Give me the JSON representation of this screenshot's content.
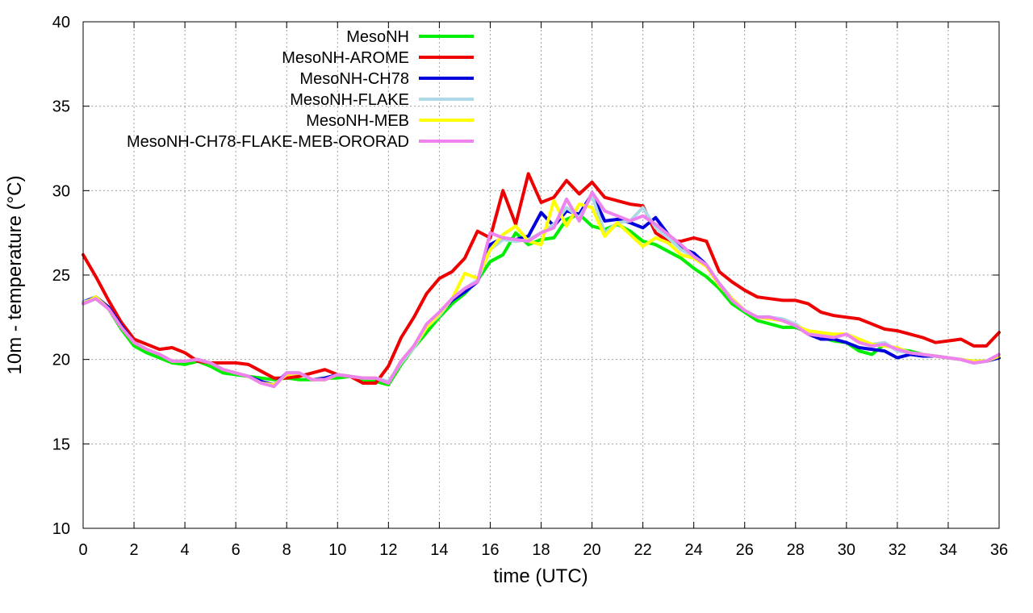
{
  "chart_data": {
    "type": "line",
    "xlabel": "time (UTC)",
    "ylabel": "10m - temperature (°C)",
    "xlim": [
      0,
      36
    ],
    "ylim": [
      10,
      40
    ],
    "xticks": [
      0,
      2,
      4,
      6,
      8,
      10,
      12,
      14,
      16,
      18,
      20,
      22,
      24,
      26,
      28,
      30,
      32,
      34,
      36
    ],
    "yticks": [
      10,
      15,
      20,
      25,
      30,
      35,
      40
    ],
    "grid": true,
    "legend_position": "top-left",
    "series": [
      {
        "name": "MesoNH",
        "color": "#00ee00",
        "x": [
          0,
          0.5,
          1,
          1.5,
          2,
          2.5,
          3,
          3.5,
          4,
          4.5,
          5,
          5.5,
          6,
          6.5,
          7,
          7.5,
          8,
          8.5,
          9,
          9.5,
          10,
          10.5,
          11,
          11.5,
          12,
          12.5,
          13,
          13.5,
          14,
          14.5,
          15,
          15.5,
          16,
          16.5,
          17,
          17.5,
          18,
          18.5,
          19,
          19.5,
          20,
          20.5,
          21,
          21.5,
          22,
          22.5,
          23,
          23.5,
          24,
          24.5,
          25,
          25.5,
          26,
          26.5,
          27,
          27.5,
          28,
          28.5,
          29,
          29.5,
          30,
          30.5,
          31,
          31.5,
          32,
          32.5,
          33,
          33.5,
          34,
          34.5,
          35,
          35.5,
          36
        ],
        "y": [
          23.3,
          23.6,
          23.0,
          21.8,
          20.8,
          20.4,
          20.1,
          19.8,
          19.7,
          19.9,
          19.6,
          19.2,
          19.1,
          19.0,
          18.9,
          18.8,
          18.9,
          18.8,
          18.8,
          18.9,
          18.9,
          19.0,
          18.8,
          18.7,
          18.5,
          19.7,
          20.7,
          21.6,
          22.5,
          23.3,
          23.9,
          24.7,
          25.8,
          26.2,
          27.5,
          26.8,
          27.1,
          27.2,
          28.3,
          28.6,
          27.9,
          27.7,
          28.0,
          27.6,
          27.0,
          26.8,
          26.4,
          26.0,
          25.4,
          24.9,
          24.2,
          23.3,
          22.8,
          22.3,
          22.1,
          21.9,
          21.9,
          21.6,
          21.3,
          21.1,
          21.0,
          20.5,
          20.3,
          20.9,
          20.6,
          20.5,
          20.3,
          20.2,
          20.1,
          20.0,
          19.9,
          19.9,
          20.2
        ]
      },
      {
        "name": "MesoNH-AROME",
        "color": "#ee0000",
        "x": [
          0,
          0.5,
          1,
          1.5,
          2,
          2.5,
          3,
          3.5,
          4,
          4.5,
          5,
          5.5,
          6,
          6.5,
          7,
          7.5,
          8,
          8.5,
          9,
          9.5,
          10,
          10.5,
          11,
          11.5,
          12,
          12.5,
          13,
          13.5,
          14,
          14.5,
          15,
          15.5,
          16,
          16.5,
          17,
          17.5,
          18,
          18.5,
          19,
          19.5,
          20,
          20.5,
          21,
          21.5,
          22,
          22.5,
          23,
          23.5,
          24,
          24.5,
          25,
          25.5,
          26,
          26.5,
          27,
          27.5,
          28,
          28.5,
          29,
          29.5,
          30,
          30.5,
          31,
          31.5,
          32,
          32.5,
          33,
          33.5,
          34,
          34.5,
          35,
          35.5,
          36
        ],
        "y": [
          26.2,
          24.9,
          23.5,
          22.2,
          21.2,
          20.9,
          20.6,
          20.7,
          20.4,
          19.9,
          19.8,
          19.8,
          19.8,
          19.7,
          19.3,
          18.9,
          18.9,
          19.0,
          19.2,
          19.4,
          19.1,
          19.0,
          18.6,
          18.6,
          19.6,
          21.3,
          22.5,
          23.9,
          24.8,
          25.2,
          26.0,
          27.6,
          27.2,
          30.0,
          28.0,
          31.0,
          29.3,
          29.6,
          30.6,
          29.8,
          30.5,
          29.6,
          29.4,
          29.2,
          29.1,
          27.5,
          27.0,
          27.0,
          27.2,
          27.0,
          25.2,
          24.6,
          24.1,
          23.7,
          23.6,
          23.5,
          23.5,
          23.3,
          22.8,
          22.6,
          22.5,
          22.4,
          22.1,
          21.8,
          21.7,
          21.5,
          21.3,
          21.0,
          21.1,
          21.2,
          20.8,
          20.8,
          21.6
        ]
      },
      {
        "name": "MesoNH-CH78",
        "color": "#0000dd",
        "x": [
          0,
          0.5,
          1,
          1.5,
          2,
          2.5,
          3,
          3.5,
          4,
          4.5,
          5,
          5.5,
          6,
          6.5,
          7,
          7.5,
          8,
          8.5,
          9,
          9.5,
          10,
          10.5,
          11,
          11.5,
          12,
          12.5,
          13,
          13.5,
          14,
          14.5,
          15,
          15.5,
          16,
          16.5,
          17,
          17.5,
          18,
          18.5,
          19,
          19.5,
          20,
          20.5,
          21,
          21.5,
          22,
          22.5,
          23,
          23.5,
          24,
          24.5,
          25,
          25.5,
          26,
          26.5,
          27,
          27.5,
          28,
          28.5,
          29,
          29.5,
          30,
          30.5,
          31,
          31.5,
          32,
          32.5,
          33,
          33.5,
          34,
          34.5,
          35,
          35.5,
          36
        ],
        "y": [
          23.4,
          23.7,
          23.1,
          22.0,
          21.0,
          20.6,
          20.3,
          19.9,
          19.9,
          20.0,
          19.8,
          19.4,
          19.2,
          19.0,
          18.7,
          18.5,
          19.2,
          19.2,
          18.8,
          18.9,
          19.1,
          19.0,
          18.9,
          18.9,
          18.6,
          19.9,
          20.8,
          22.0,
          22.7,
          23.5,
          24.0,
          24.6,
          26.8,
          27.2,
          27.1,
          27.3,
          28.7,
          27.9,
          28.8,
          28.6,
          29.8,
          28.2,
          28.3,
          28.1,
          27.8,
          28.4,
          27.4,
          26.6,
          26.3,
          25.6,
          24.5,
          23.6,
          22.9,
          22.5,
          22.5,
          22.3,
          22.0,
          21.5,
          21.2,
          21.2,
          21.0,
          20.7,
          20.6,
          20.5,
          20.1,
          20.3,
          20.2,
          20.2,
          20.1,
          20.0,
          19.8,
          19.9,
          20.1
        ]
      },
      {
        "name": "MesoNH-FLAKE",
        "color": "#add8e6",
        "x": [
          0,
          0.5,
          1,
          1.5,
          2,
          2.5,
          3,
          3.5,
          4,
          4.5,
          5,
          5.5,
          6,
          6.5,
          7,
          7.5,
          8,
          8.5,
          9,
          9.5,
          10,
          10.5,
          11,
          11.5,
          12,
          12.5,
          13,
          13.5,
          14,
          14.5,
          15,
          15.5,
          16,
          16.5,
          17,
          17.5,
          18,
          18.5,
          19,
          19.5,
          20,
          20.5,
          21,
          21.5,
          22,
          22.5,
          23,
          23.5,
          24,
          24.5,
          25,
          25.5,
          26,
          26.5,
          27,
          27.5,
          28,
          28.5,
          29,
          29.5,
          30,
          30.5,
          31,
          31.5,
          32,
          32.5,
          33,
          33.5,
          34,
          34.5,
          35,
          35.5,
          36
        ],
        "y": [
          23.4,
          23.6,
          23.0,
          21.9,
          21.0,
          20.6,
          20.3,
          19.9,
          19.9,
          20.0,
          19.8,
          19.4,
          19.2,
          19.0,
          18.6,
          18.5,
          19.1,
          19.2,
          18.8,
          18.8,
          19.1,
          19.0,
          18.9,
          18.9,
          18.7,
          19.8,
          20.7,
          21.9,
          22.6,
          23.6,
          24.2,
          24.7,
          26.5,
          27.1,
          27.0,
          27.1,
          27.5,
          28.0,
          29.0,
          28.4,
          29.7,
          27.5,
          28.1,
          28.2,
          29.0,
          27.8,
          27.2,
          26.5,
          26.1,
          25.6,
          24.5,
          23.6,
          22.9,
          22.5,
          22.5,
          22.4,
          22.1,
          21.6,
          21.4,
          21.4,
          21.5,
          21.1,
          20.9,
          21.0,
          20.5,
          20.4,
          20.3,
          20.2,
          20.1,
          20.0,
          19.8,
          19.9,
          20.2
        ]
      },
      {
        "name": "MesoNH-MEB",
        "color": "#ffff00",
        "x": [
          0,
          0.5,
          1,
          1.5,
          2,
          2.5,
          3,
          3.5,
          4,
          4.5,
          5,
          5.5,
          6,
          6.5,
          7,
          7.5,
          8,
          8.5,
          9,
          9.5,
          10,
          10.5,
          11,
          11.5,
          12,
          12.5,
          13,
          13.5,
          14,
          14.5,
          15,
          15.5,
          16,
          16.5,
          17,
          17.5,
          18,
          18.5,
          19,
          19.5,
          20,
          20.5,
          21,
          21.5,
          22,
          22.5,
          23,
          23.5,
          24,
          24.5,
          25,
          25.5,
          26,
          26.5,
          27,
          27.5,
          28,
          28.5,
          29,
          29.5,
          30,
          30.5,
          31,
          31.5,
          32,
          32.5,
          33,
          33.5,
          34,
          34.5,
          35,
          35.5,
          36
        ],
        "y": [
          23.3,
          23.7,
          23.0,
          21.9,
          21.0,
          20.6,
          20.3,
          19.9,
          19.9,
          20.0,
          19.8,
          19.4,
          19.2,
          19.0,
          18.6,
          18.5,
          19.1,
          19.2,
          18.8,
          18.8,
          19.1,
          19.0,
          18.9,
          18.9,
          18.6,
          19.9,
          20.8,
          21.9,
          22.7,
          23.6,
          25.1,
          24.8,
          26.5,
          27.4,
          27.9,
          27.0,
          26.8,
          29.4,
          27.9,
          29.2,
          29.0,
          27.3,
          28.1,
          27.4,
          26.7,
          27.2,
          26.9,
          26.2,
          26.0,
          25.5,
          24.4,
          23.6,
          22.9,
          22.5,
          22.4,
          22.3,
          22.0,
          21.7,
          21.6,
          21.5,
          21.5,
          21.2,
          20.9,
          20.8,
          20.7,
          20.4,
          20.3,
          20.2,
          20.1,
          20.0,
          19.9,
          19.9,
          20.2
        ]
      },
      {
        "name": "MesoNH-CH78-FLAKE-MEB-ORORAD",
        "color": "#ee82ee",
        "x": [
          0,
          0.5,
          1,
          1.5,
          2,
          2.5,
          3,
          3.5,
          4,
          4.5,
          5,
          5.5,
          6,
          6.5,
          7,
          7.5,
          8,
          8.5,
          9,
          9.5,
          10,
          10.5,
          11,
          11.5,
          12,
          12.5,
          13,
          13.5,
          14,
          14.5,
          15,
          15.5,
          16,
          16.5,
          17,
          17.5,
          18,
          18.5,
          19,
          19.5,
          20,
          20.5,
          21,
          21.5,
          22,
          22.5,
          23,
          23.5,
          24,
          24.5,
          25,
          25.5,
          26,
          26.5,
          27,
          27.5,
          28,
          28.5,
          29,
          29.5,
          30,
          30.5,
          31,
          31.5,
          32,
          32.5,
          33,
          33.5,
          34,
          34.5,
          35,
          35.5,
          36
        ],
        "y": [
          23.3,
          23.6,
          23.0,
          21.9,
          21.0,
          20.6,
          20.3,
          19.9,
          19.9,
          20.0,
          19.8,
          19.4,
          19.2,
          19.0,
          18.6,
          18.4,
          19.2,
          19.2,
          18.8,
          18.8,
          19.1,
          19.0,
          18.9,
          18.9,
          18.6,
          19.9,
          20.8,
          22.1,
          22.8,
          23.6,
          24.2,
          24.6,
          27.5,
          27.2,
          27.1,
          27.0,
          27.5,
          27.8,
          29.5,
          28.2,
          29.9,
          28.8,
          28.5,
          28.2,
          28.5,
          28.0,
          27.4,
          26.8,
          26.1,
          25.6,
          24.5,
          23.5,
          22.9,
          22.5,
          22.5,
          22.3,
          22.0,
          21.5,
          21.4,
          21.3,
          21.5,
          21.0,
          20.8,
          20.9,
          20.6,
          20.4,
          20.3,
          20.2,
          20.1,
          20.0,
          19.8,
          19.9,
          20.3
        ]
      }
    ]
  }
}
